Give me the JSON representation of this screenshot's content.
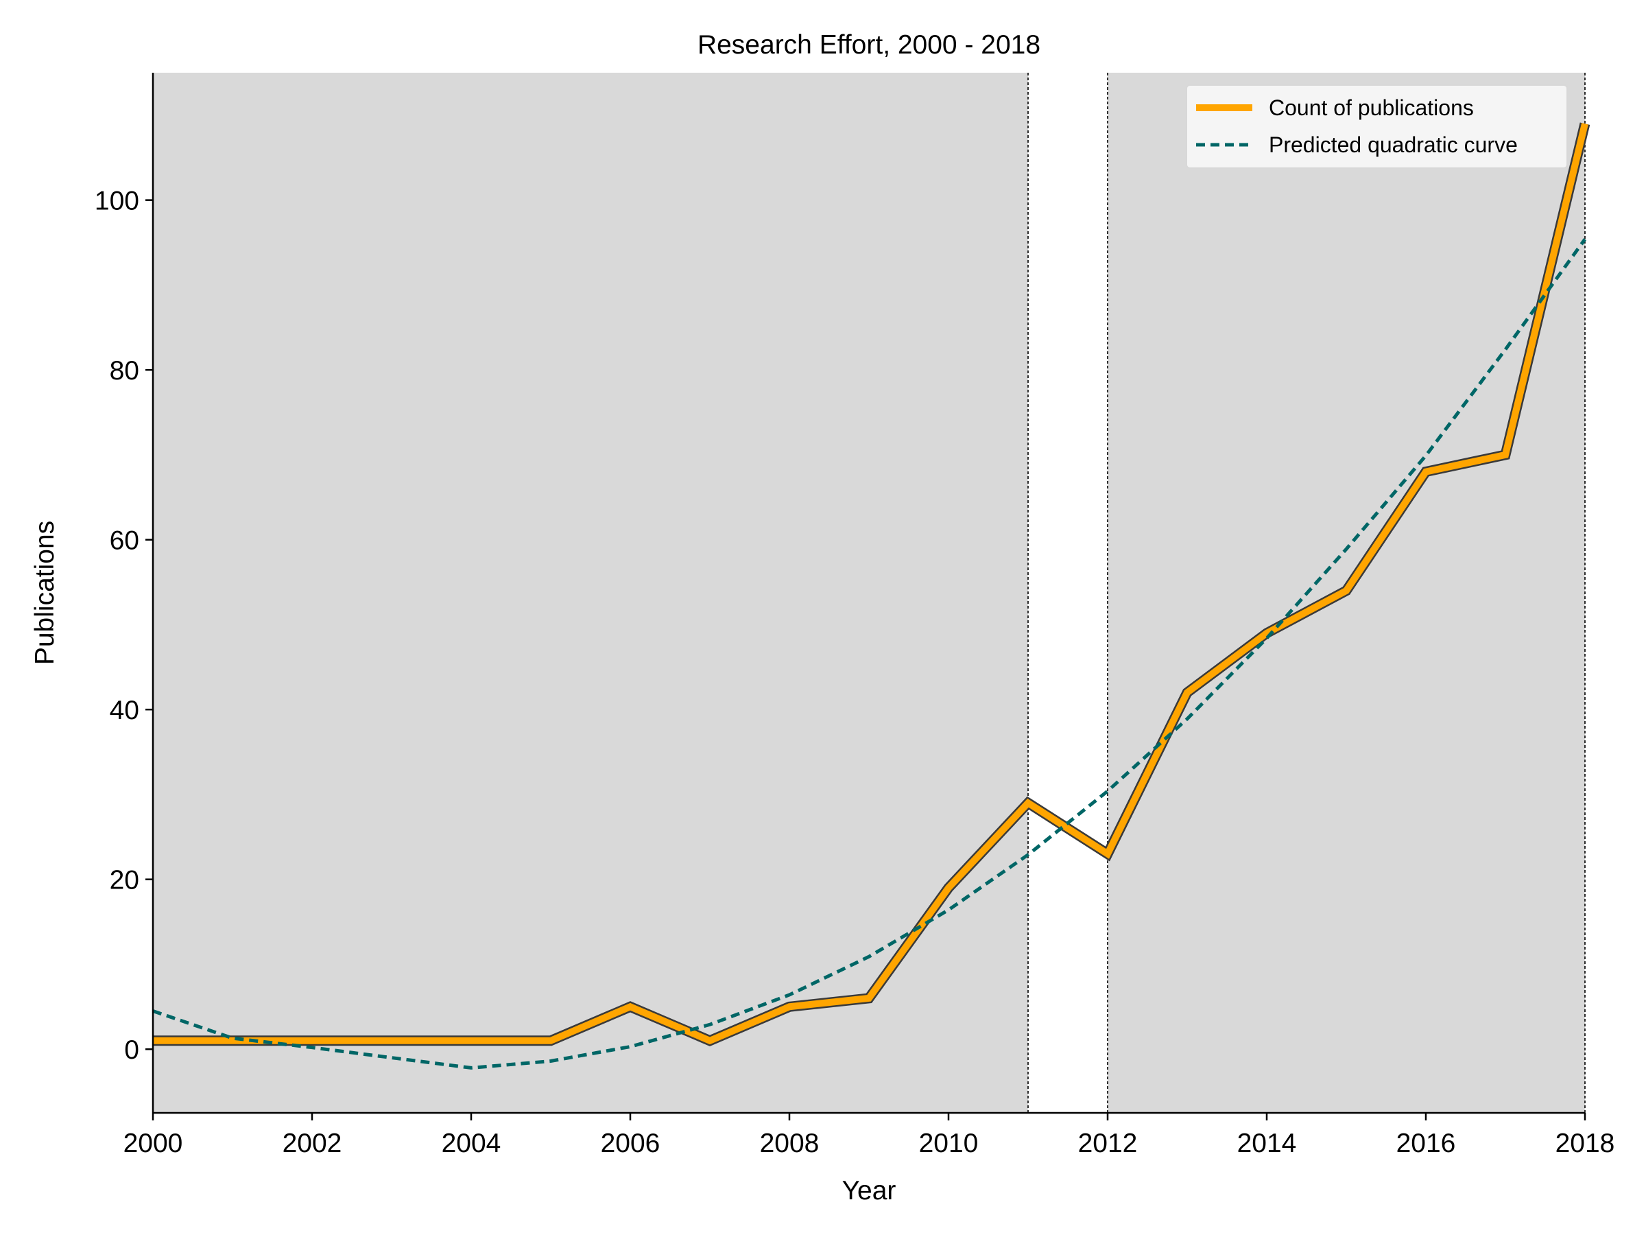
{
  "chart_data": {
    "type": "line",
    "title": "Research Effort, 2000 - 2018",
    "xlabel": "Year",
    "ylabel": "Publications",
    "xlim": [
      2000,
      2018
    ],
    "ylim": [
      -7.5,
      115
    ],
    "x_ticks": [
      2000,
      2002,
      2004,
      2006,
      2008,
      2010,
      2012,
      2014,
      2016,
      2018
    ],
    "y_ticks": [
      0,
      20,
      40,
      60,
      80,
      100
    ],
    "grid": false,
    "legend_position": "top-right",
    "x": [
      2000,
      2001,
      2002,
      2003,
      2004,
      2005,
      2006,
      2007,
      2008,
      2009,
      2010,
      2011,
      2012,
      2013,
      2014,
      2015,
      2016,
      2017,
      2018
    ],
    "series": [
      {
        "name": "Count of publications",
        "style": "solid",
        "color": "#FFA500",
        "values": [
          1,
          1,
          1,
          1,
          1,
          1,
          5,
          1,
          5,
          6,
          19,
          29,
          23,
          42,
          49,
          54,
          68,
          70,
          109
        ]
      },
      {
        "name": "Predicted quadratic curve",
        "style": "dashed",
        "color": "#006666",
        "values": [
          4.5,
          1.3,
          0.2,
          -1.0,
          -2.2,
          -1.4,
          0.3,
          2.9,
          6.4,
          10.9,
          16.4,
          22.9,
          30.4,
          38.9,
          48.4,
          58.9,
          69.9,
          82.4,
          95.4
        ]
      }
    ],
    "shaded_regions": [
      {
        "x": [
          2000,
          2011
        ],
        "color": "#D9D9D9"
      },
      {
        "x": [
          2012,
          2018
        ],
        "color": "#D9D9D9"
      }
    ],
    "vertical_lines": [
      2011,
      2012,
      2018
    ]
  }
}
